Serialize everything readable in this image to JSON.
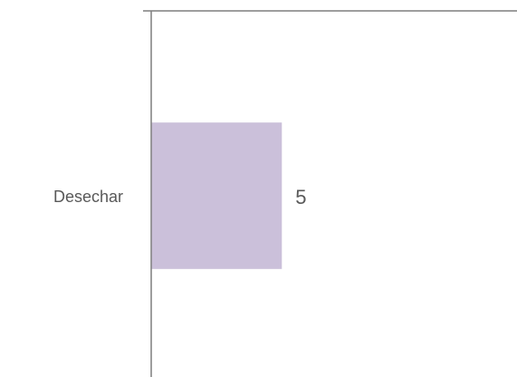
{
  "chart_data": {
    "type": "bar",
    "orientation": "horizontal",
    "categories": [
      "Desechar"
    ],
    "values": [
      5
    ],
    "color": "#cbc0da",
    "xlim": [
      0,
      14
    ]
  }
}
